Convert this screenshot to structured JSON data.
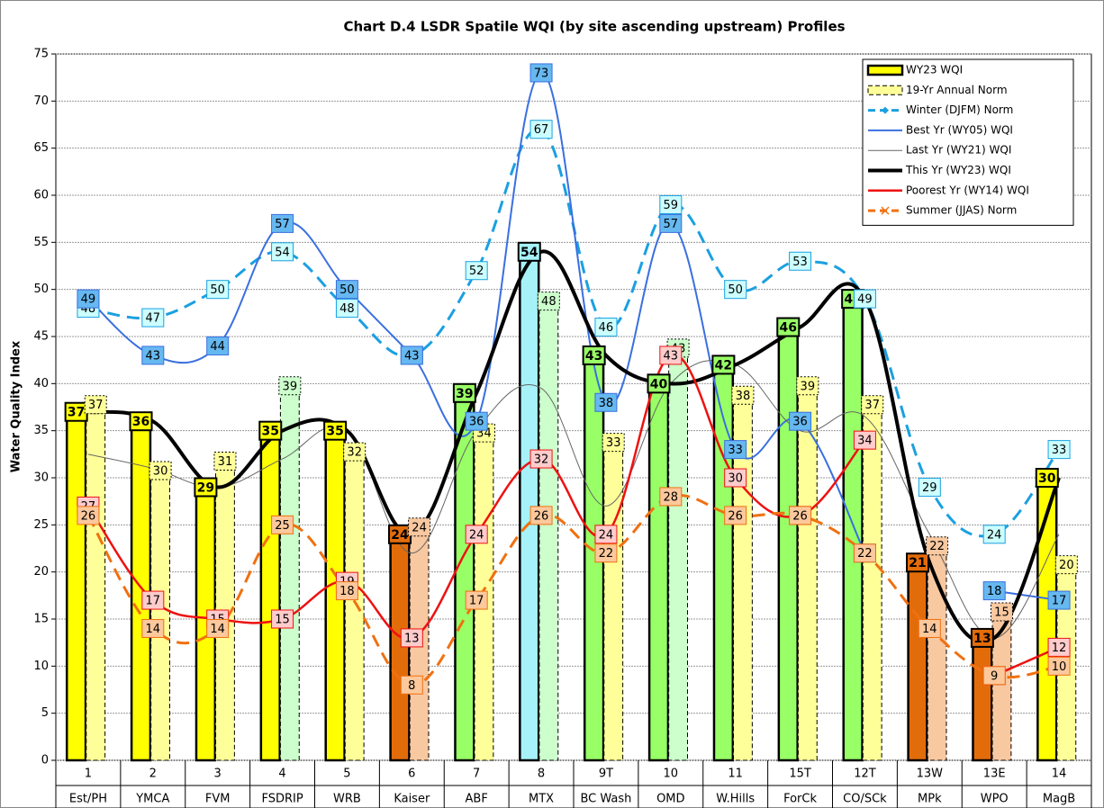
{
  "chart_data": {
    "type": "combo",
    "title": "Chart D.4 LSDR Spatile WQI (by site ascending upstream) Profiles",
    "y_label": "Water Quality Index",
    "categories": [
      [
        "1",
        "Est/PH"
      ],
      [
        "2",
        "YMCA"
      ],
      [
        "3",
        "FVM"
      ],
      [
        "4",
        "FSDRIP"
      ],
      [
        "5",
        "WRB"
      ],
      [
        "6",
        "Kaiser"
      ],
      [
        "7",
        "ABF"
      ],
      [
        "8",
        "MTX"
      ],
      [
        "9T",
        "BC Wash"
      ],
      [
        "10",
        "OMD"
      ],
      [
        "11",
        "W.Hills"
      ],
      [
        "15T",
        "ForCk"
      ],
      [
        "12T",
        "CO/SCk"
      ],
      [
        "13W",
        "MPk"
      ],
      [
        "13E",
        "WPO"
      ],
      [
        "14",
        "MagB"
      ]
    ],
    "ylim": [
      0,
      75
    ],
    "yticks": [
      0,
      5,
      10,
      15,
      20,
      25,
      30,
      35,
      40,
      45,
      50,
      55,
      60,
      65,
      70,
      75
    ],
    "grid": true,
    "legend": "top-right",
    "series": [
      {
        "name": "WY23 WQI",
        "kind": "bar",
        "colors": [
          "#ffff00",
          "#ffff00",
          "#ffff00",
          "#ffff00",
          "#ffff00",
          "#e36c0a",
          "#99ff66",
          "#a6f2f8",
          "#99ff66",
          "#99ff66",
          "#99ff66",
          "#99ff66",
          "#99ff66",
          "#e36c0a",
          "#e36c0a",
          "#ffff00"
        ],
        "values": [
          37,
          36,
          29,
          35,
          35,
          24,
          39,
          54,
          43,
          40,
          42,
          46,
          49,
          21,
          13,
          30
        ]
      },
      {
        "name": "19-Yr Annual Norm",
        "kind": "bar",
        "dash": true,
        "colors": [
          "#ffff99",
          "#ffff99",
          "#ffff99",
          "#ccffcc",
          "#ffff99",
          "#f8c8a0",
          "#ffff99",
          "#ccffcc",
          "#ffff99",
          "#ccffcc",
          "#ffff99",
          "#ffff99",
          "#ffff99",
          "#f8c8a0",
          "#f8c8a0",
          "#ffff99"
        ],
        "values": [
          37,
          30,
          31,
          39,
          32,
          24,
          34,
          48,
          33,
          43,
          38,
          39,
          37,
          22,
          15,
          20
        ]
      },
      {
        "name": "Winter (DJFM) Norm",
        "kind": "line",
        "color": "#1aa0e0",
        "dash": true,
        "width": 3,
        "marker": "diamond",
        "label_fill": "#ccffff",
        "values": [
          48,
          47,
          50,
          54,
          48,
          43,
          52,
          67,
          46,
          59,
          50,
          53,
          49,
          29,
          24,
          33
        ]
      },
      {
        "name": "Best Yr (WY05) WQI",
        "kind": "line",
        "color": "#3a6fe0",
        "width": 2,
        "label_fill": "#66b8f0",
        "values": [
          49,
          43,
          44,
          57,
          50,
          43,
          36,
          73,
          38,
          57,
          33,
          36,
          22,
          null,
          18,
          17
        ]
      },
      {
        "name": "Last Yr (WY21) WQI",
        "kind": "line",
        "color": "#666666",
        "width": 1,
        "values": [
          32.5,
          31,
          29,
          32,
          35,
          22,
          35,
          39.5,
          27,
          40,
          42,
          35,
          36.5,
          24,
          13,
          24
        ]
      },
      {
        "name": "This Yr (WY23) WQI",
        "kind": "line",
        "color": "#000000",
        "width": 4,
        "values": [
          37,
          36,
          29,
          35,
          35,
          24,
          39,
          54,
          43,
          40,
          42,
          46,
          49,
          21,
          13,
          30
        ]
      },
      {
        "name": "Poorest Yr (WY14) WQI",
        "kind": "line",
        "color": "#ee1111",
        "width": 2.5,
        "label_fill": "#ffcccc",
        "values": [
          27,
          17,
          15,
          15,
          19,
          13,
          24,
          32,
          24,
          43,
          30,
          26,
          34,
          null,
          9,
          12
        ]
      },
      {
        "name": "Summer (JJAS) Norm",
        "kind": "line",
        "color": "#f07010",
        "dash": true,
        "width": 3,
        "marker": "x",
        "label_fill": "#fcc89c",
        "values": [
          26,
          14,
          14,
          25,
          18,
          8,
          17,
          26,
          22,
          28,
          26,
          26,
          22,
          14,
          9,
          10
        ]
      }
    ]
  }
}
